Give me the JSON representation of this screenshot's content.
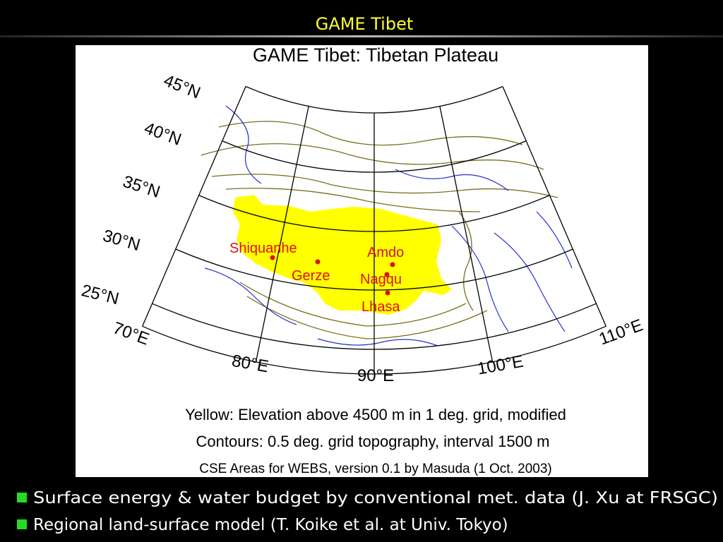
{
  "header": {
    "title": "GAME Tibet"
  },
  "map": {
    "title": "GAME Tibet: Tibetan Plateau",
    "latitude_labels": [
      "45°N",
      "40°N",
      "35°N",
      "30°N",
      "25°N"
    ],
    "longitude_labels": [
      "70°E",
      "80°E",
      "90°E",
      "100°E",
      "110°E"
    ],
    "stations": [
      "Shiquanhe",
      "Gerze",
      "Amdo",
      "Nagqu",
      "Lhasa"
    ],
    "caption": [
      "Yellow: Elevation above 4500 m in 1 deg. grid, modified",
      "Contours: 0.5 deg. grid topography, interval 1500 m",
      "CSE Areas for WEBS, version 0.1 by Masuda (1 Oct. 2003)"
    ]
  },
  "bullets": [
    "Surface energy & water budget by conventional met. data (J. Xu at FRSGC)",
    "Regional land-surface model (T. Koike et al. at Univ. Tokyo)"
  ]
}
